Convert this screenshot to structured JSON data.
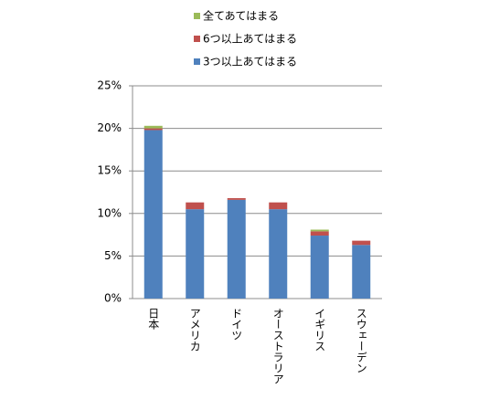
{
  "chart_data": {
    "type": "stacked-bar",
    "categories": [
      "日本",
      "アメリカ",
      "ドイツ",
      "オーストラリア",
      "イギリス",
      "スウェーデン"
    ],
    "series": [
      {
        "name": "3つ以上あてはまる",
        "color": "#4f81bd",
        "values": [
          19.8,
          10.5,
          11.6,
          10.5,
          7.4,
          6.3
        ]
      },
      {
        "name": "6つ以上あてはまる",
        "color": "#c0504d",
        "values": [
          0.2,
          0.8,
          0.2,
          0.8,
          0.5,
          0.5
        ]
      },
      {
        "name": "全てあてはまる",
        "color": "#9bbb59",
        "values": [
          0.3,
          0,
          0,
          0,
          0.2,
          0
        ]
      }
    ],
    "ylim": [
      0,
      25
    ],
    "yticks": [
      {
        "value": 0,
        "label": "0%"
      },
      {
        "value": 5,
        "label": "5%"
      },
      {
        "value": 10,
        "label": "10%"
      },
      {
        "value": 15,
        "label": "15%"
      },
      {
        "value": 20,
        "label": "20%"
      },
      {
        "value": 25,
        "label": "25%"
      }
    ],
    "grid": true
  }
}
